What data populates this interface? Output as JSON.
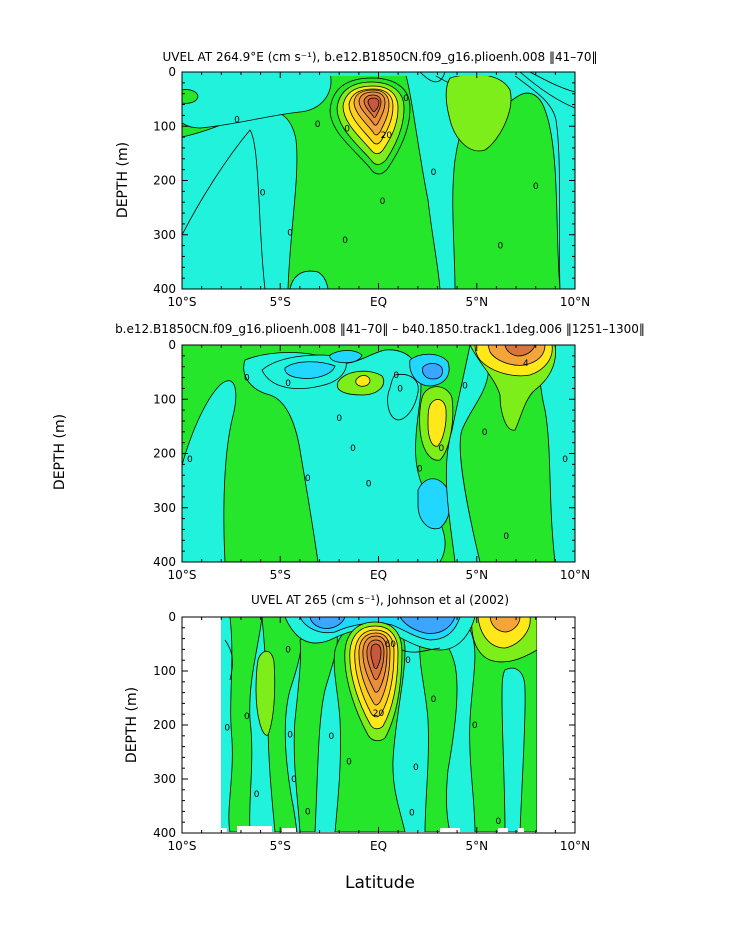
{
  "colors": {
    "background": "#ffffff",
    "axis": "#000000",
    "contour_line": "#000000",
    "cyan": "#21f2dc",
    "light_blue": "#21d6ff",
    "blue": "#3aa6ff",
    "green": "#25e62b",
    "light_green": "#7dee1a",
    "yellow": "#ffe81a",
    "orange": "#f4a53a",
    "dark_orange": "#d9753c"
  },
  "chart_data": [
    {
      "type": "contour",
      "title": "UVEL AT 264.9°E (cm s⁻¹), b.e12.B1850CN.f09_g16.plioenh.008 ‖41–70‖",
      "xlabel": "",
      "ylabel": "DEPTH (m)",
      "xlim": [
        -10,
        10
      ],
      "ylim": [
        400,
        0
      ],
      "x_ticks": [
        "10°S",
        "5°S",
        "EQ",
        "5°N",
        "10°N"
      ],
      "y_ticks": [
        "0",
        "100",
        "200",
        "300",
        "400"
      ],
      "contour_labels": [
        {
          "text": "0",
          "x": -7.2,
          "y": 88
        },
        {
          "text": "0",
          "x": -5.9,
          "y": 222
        },
        {
          "text": "0",
          "x": -4.5,
          "y": 296
        },
        {
          "text": "0",
          "x": -3.1,
          "y": 96
        },
        {
          "text": "0",
          "x": -1.7,
          "y": 310
        },
        {
          "text": "0",
          "x": -1.6,
          "y": 104
        },
        {
          "text": "20",
          "x": 0.4,
          "y": 116
        },
        {
          "text": "0",
          "x": 1.4,
          "y": 48
        },
        {
          "text": "0",
          "x": 0.2,
          "y": 238
        },
        {
          "text": "0",
          "x": 2.8,
          "y": 184
        },
        {
          "text": "0",
          "x": 6.2,
          "y": 320
        },
        {
          "text": "0",
          "x": 8.0,
          "y": 210
        }
      ],
      "max_at": {
        "x": 0.0,
        "y": 70
      }
    },
    {
      "type": "contour",
      "title": "b.e12.B1850CN.f09_g16.plioenh.008 ‖41–70‖ – b40.1850.track1.1deg.006 ‖1251–1300‖",
      "xlabel": "",
      "ylabel": "DEPTH (m)",
      "xlim": [
        -10,
        10
      ],
      "ylim": [
        400,
        0
      ],
      "x_ticks": [
        "10°S",
        "5°S",
        "EQ",
        "5°N",
        "10°N"
      ],
      "y_ticks": [
        "0",
        "100",
        "200",
        "300",
        "400"
      ],
      "contour_labels": [
        {
          "text": "0",
          "x": -9.6,
          "y": 210
        },
        {
          "text": "0",
          "x": -6.7,
          "y": 60
        },
        {
          "text": "0",
          "x": -4.6,
          "y": 70
        },
        {
          "text": "0",
          "x": -3.6,
          "y": 245
        },
        {
          "text": "0",
          "x": -2.0,
          "y": 135
        },
        {
          "text": "0",
          "x": -1.3,
          "y": 190
        },
        {
          "text": "0",
          "x": -0.5,
          "y": 255
        },
        {
          "text": "0",
          "x": 0.9,
          "y": 55
        },
        {
          "text": "0",
          "x": 1.1,
          "y": 80
        },
        {
          "text": "0",
          "x": 2.1,
          "y": 228
        },
        {
          "text": "0",
          "x": 3.2,
          "y": 190
        },
        {
          "text": "0",
          "x": 4.4,
          "y": 75
        },
        {
          "text": "0",
          "x": 5.4,
          "y": 160
        },
        {
          "text": "0",
          "x": 6.5,
          "y": 352
        },
        {
          "text": "4",
          "x": 7.5,
          "y": 33
        },
        {
          "text": "0",
          "x": 9.5,
          "y": 210
        }
      ]
    },
    {
      "type": "contour",
      "title": "UVEL AT 265 (cm s⁻¹), Johnson et al (2002)",
      "xlabel": "Latitude",
      "ylabel": "DEPTH (m)",
      "xlim": [
        -10,
        10
      ],
      "ylim": [
        400,
        0
      ],
      "x_ticks": [
        "10°S",
        "5°S",
        "EQ",
        "5°N",
        "10°N"
      ],
      "y_ticks": [
        "0",
        "100",
        "200",
        "300",
        "400"
      ],
      "data_x_range": [
        -8,
        8
      ],
      "contour_labels": [
        {
          "text": "0",
          "x": -7.7,
          "y": 205
        },
        {
          "text": "0",
          "x": -6.7,
          "y": 183
        },
        {
          "text": "0",
          "x": -6.2,
          "y": 328
        },
        {
          "text": "0",
          "x": -4.5,
          "y": 218
        },
        {
          "text": "0",
          "x": -4.3,
          "y": 300
        },
        {
          "text": "0",
          "x": -3.6,
          "y": 360
        },
        {
          "text": "0",
          "x": -4.6,
          "y": 60
        },
        {
          "text": "0",
          "x": -2.4,
          "y": 220
        },
        {
          "text": "0",
          "x": -1.5,
          "y": 268
        },
        {
          "text": "20",
          "x": 0.0,
          "y": 178
        },
        {
          "text": "60",
          "x": 0.6,
          "y": 50
        },
        {
          "text": "0",
          "x": 1.5,
          "y": 80
        },
        {
          "text": "0",
          "x": 1.9,
          "y": 278
        },
        {
          "text": "0",
          "x": 1.7,
          "y": 362
        },
        {
          "text": "0",
          "x": 2.8,
          "y": 152
        },
        {
          "text": "0",
          "x": 4.9,
          "y": 200
        },
        {
          "text": "0",
          "x": 6.1,
          "y": 378
        }
      ]
    }
  ]
}
